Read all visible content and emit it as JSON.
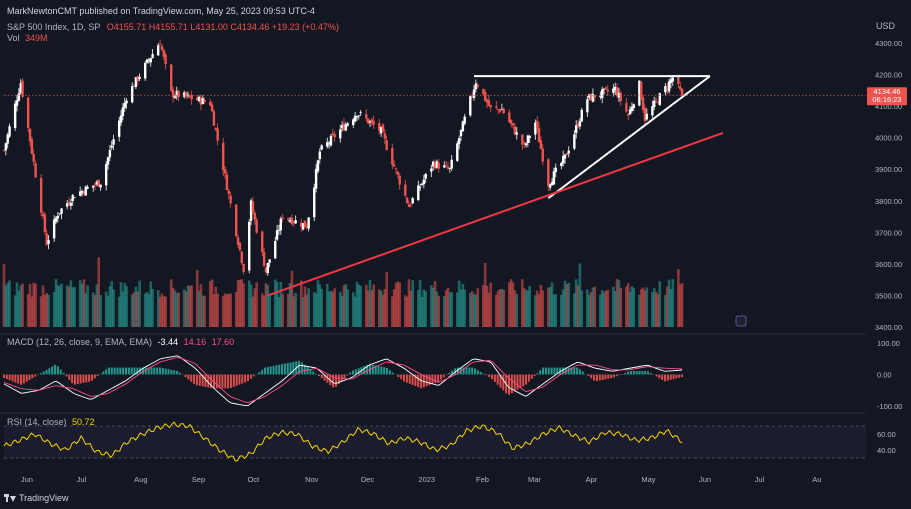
{
  "header": {
    "published": "MarkNewtonCMT published on TradingView.com, May 25, 2023 09:53 UTC-4",
    "symbol_line": "S&P 500 Index, 1D, SP",
    "ohlc": "O4155.71 H4155.71 L4131.00 C4134.46 +19.23 (+0.47%)",
    "volume_label": "Vol",
    "volume_value": "349M"
  },
  "currency": "USD",
  "price_badge": {
    "price": "4134.46",
    "countdown": "06:16:23"
  },
  "macd_header": {
    "label": "MACD (12, 26, close, 9, EMA, EMA)",
    "v1": "-3.44",
    "v2": "14.16",
    "v3": "17.60"
  },
  "rsi_header": {
    "label": "RSI (14, close)",
    "value": "50.72"
  },
  "logo_text": "TradingView",
  "colors": {
    "bg": "#131722",
    "up": "#26a69a",
    "down": "#ef5350",
    "white": "#ffffff",
    "trend": "#f23645",
    "rsi": "#f5d300",
    "macd": "#ffffff",
    "signal": "#ff4d8d"
  },
  "chart_data": [
    {
      "type": "candlestick",
      "title": "S&P 500 Index, 1D",
      "y_ticks": [
        "4300.00",
        "4200.00",
        "4100.00",
        "4000.00",
        "3900.00",
        "3800.00",
        "3700.00",
        "3600.00",
        "3500.00",
        "3400.00"
      ],
      "ylim": [
        3400,
        4330
      ],
      "x_ticks": [
        "Jun",
        "Jul",
        "Aug",
        "Sep",
        "Oct",
        "Nov",
        "Dec",
        "2023",
        "Feb",
        "Mar",
        "Apr",
        "May",
        "Jun",
        "Jul",
        "Au"
      ],
      "x_range": [
        "2022-05-24",
        "2023-08-31"
      ],
      "swing_points": [
        {
          "date": "2022-05-24",
          "close": 3960
        },
        {
          "date": "2022-06-02",
          "close": 4175
        },
        {
          "date": "2022-06-16",
          "close": 3666
        },
        {
          "date": "2022-06-22",
          "close": 3760
        },
        {
          "date": "2022-07-01",
          "close": 3820
        },
        {
          "date": "2022-07-15",
          "close": 3860
        },
        {
          "date": "2022-07-29",
          "close": 4130
        },
        {
          "date": "2022-08-16",
          "close": 4305
        },
        {
          "date": "2022-08-22",
          "close": 4140
        },
        {
          "date": "2022-09-12",
          "close": 4110
        },
        {
          "date": "2022-09-30",
          "close": 3585
        },
        {
          "date": "2022-10-04",
          "close": 3790
        },
        {
          "date": "2022-10-12",
          "close": 3577
        },
        {
          "date": "2022-10-21",
          "close": 3752
        },
        {
          "date": "2022-11-03",
          "close": 3720
        },
        {
          "date": "2022-11-10",
          "close": 3956
        },
        {
          "date": "2022-11-30",
          "close": 4080
        },
        {
          "date": "2022-12-13",
          "close": 4020
        },
        {
          "date": "2022-12-28",
          "close": 3783
        },
        {
          "date": "2023-01-10",
          "close": 3919
        },
        {
          "date": "2023-01-19",
          "close": 3898
        },
        {
          "date": "2023-02-02",
          "close": 4179
        },
        {
          "date": "2023-02-10",
          "close": 4090
        },
        {
          "date": "2023-02-16",
          "close": 4090
        },
        {
          "date": "2023-02-28",
          "close": 3970
        },
        {
          "date": "2023-03-06",
          "close": 4048
        },
        {
          "date": "2023-03-13",
          "close": 3855
        },
        {
          "date": "2023-03-22",
          "close": 3937
        },
        {
          "date": "2023-04-03",
          "close": 4124
        },
        {
          "date": "2023-04-18",
          "close": 4154
        },
        {
          "date": "2023-04-25",
          "close": 4071
        },
        {
          "date": "2023-05-01",
          "close": 4167
        },
        {
          "date": "2023-05-04",
          "close": 4061
        },
        {
          "date": "2023-05-19",
          "close": 4191
        },
        {
          "date": "2023-05-24",
          "close": 4134.46
        }
      ],
      "volume_ticks": [],
      "annotations": [
        {
          "type": "horizontal-resistance",
          "color": "white",
          "value": 4195,
          "from": "2023-02-01",
          "to": "2023-06-08"
        },
        {
          "type": "rising-trendline",
          "color": "white",
          "from": {
            "date": "2023-03-13",
            "value": 3808
          },
          "to": {
            "date": "2023-06-08",
            "value": 4195
          }
        },
        {
          "type": "rising-trendline",
          "color": "red",
          "from": {
            "date": "2022-10-13",
            "value": 3500
          },
          "to": {
            "date": "2023-06-15",
            "value": 4015
          }
        },
        {
          "type": "price-line",
          "value": 4134.46
        }
      ]
    },
    {
      "type": "line",
      "title": "MACD (12, 26, close, 9, EMA, EMA)",
      "y_ticks": [
        "100.00",
        "0.00",
        "-100.00"
      ],
      "ylim": [
        -100,
        100
      ],
      "series": [
        {
          "name": "MACD",
          "values": [
            -30,
            -60,
            -50,
            -20,
            -60,
            -80,
            -50,
            -20,
            20,
            50,
            60,
            20,
            -40,
            -90,
            -100,
            -60,
            -20,
            30,
            20,
            -30,
            -10,
            30,
            50,
            20,
            -20,
            -35,
            10,
            50,
            40,
            -40,
            -70,
            -30,
            10,
            40,
            20,
            10,
            20,
            30,
            10,
            14
          ]
        },
        {
          "name": "Signal",
          "values": [
            -25,
            -45,
            -50,
            -35,
            -45,
            -70,
            -60,
            -30,
            10,
            40,
            55,
            35,
            -20,
            -70,
            -90,
            -70,
            -35,
            10,
            20,
            -10,
            -15,
            15,
            40,
            30,
            0,
            -25,
            0,
            40,
            45,
            -10,
            -55,
            -40,
            0,
            30,
            30,
            15,
            15,
            25,
            20,
            17.6
          ]
        }
      ]
    },
    {
      "type": "line",
      "title": "RSI (14, close)",
      "y_ticks": [
        "60.00",
        "40.00"
      ],
      "ylim": [
        20,
        80
      ],
      "bands": [
        70,
        30
      ],
      "series": [
        {
          "name": "RSI",
          "values": [
            45,
            52,
            60,
            48,
            40,
            55,
            38,
            33,
            50,
            60,
            68,
            72,
            70,
            55,
            40,
            28,
            35,
            55,
            62,
            60,
            45,
            38,
            50,
            66,
            60,
            48,
            55,
            50,
            40,
            46,
            64,
            70,
            62,
            42,
            48,
            60,
            68,
            58,
            50,
            62,
            60,
            52,
            55,
            64,
            50.72
          ]
        }
      ]
    }
  ]
}
